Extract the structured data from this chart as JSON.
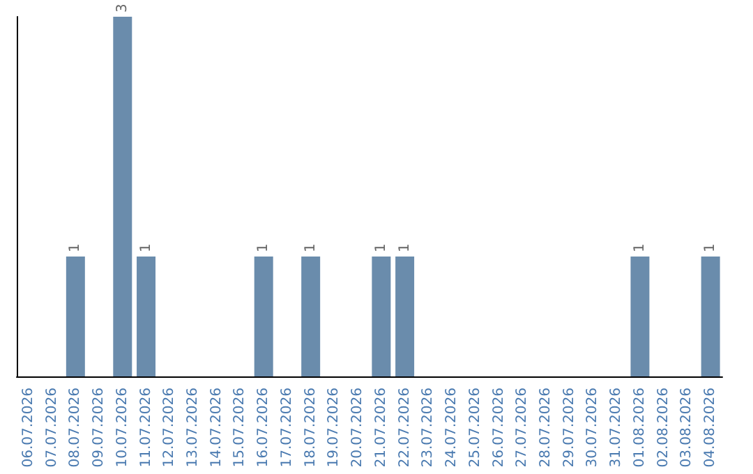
{
  "chart_data": {
    "type": "bar",
    "categories": [
      "06.07.2026",
      "07.07.2026",
      "08.07.2026",
      "09.07.2026",
      "10.07.2026",
      "11.07.2026",
      "12.07.2026",
      "13.07.2026",
      "14.07.2026",
      "15.07.2026",
      "16.07.2026",
      "17.07.2026",
      "18.07.2026",
      "19.07.2026",
      "20.07.2026",
      "21.07.2026",
      "22.07.2026",
      "23.07.2026",
      "24.07.2026",
      "25.07.2026",
      "26.07.2026",
      "27.07.2026",
      "28.07.2026",
      "29.07.2026",
      "30.07.2026",
      "31.07.2026",
      "01.08.2026",
      "02.08.2026",
      "03.08.2026",
      "04.08.2026"
    ],
    "values": [
      0,
      0,
      1,
      0,
      3,
      1,
      0,
      0,
      0,
      0,
      1,
      0,
      1,
      0,
      0,
      1,
      1,
      0,
      0,
      0,
      0,
      0,
      0,
      0,
      0,
      0,
      1,
      0,
      0,
      1
    ],
    "value_labels": [
      null,
      null,
      "1",
      null,
      "3",
      "1",
      null,
      null,
      null,
      null,
      "1",
      null,
      "1",
      null,
      null,
      "1",
      "1",
      null,
      null,
      null,
      null,
      null,
      null,
      null,
      null,
      null,
      "1",
      null,
      null,
      "1"
    ],
    "color": "#6a8cac",
    "tick_labels": "x"
  }
}
